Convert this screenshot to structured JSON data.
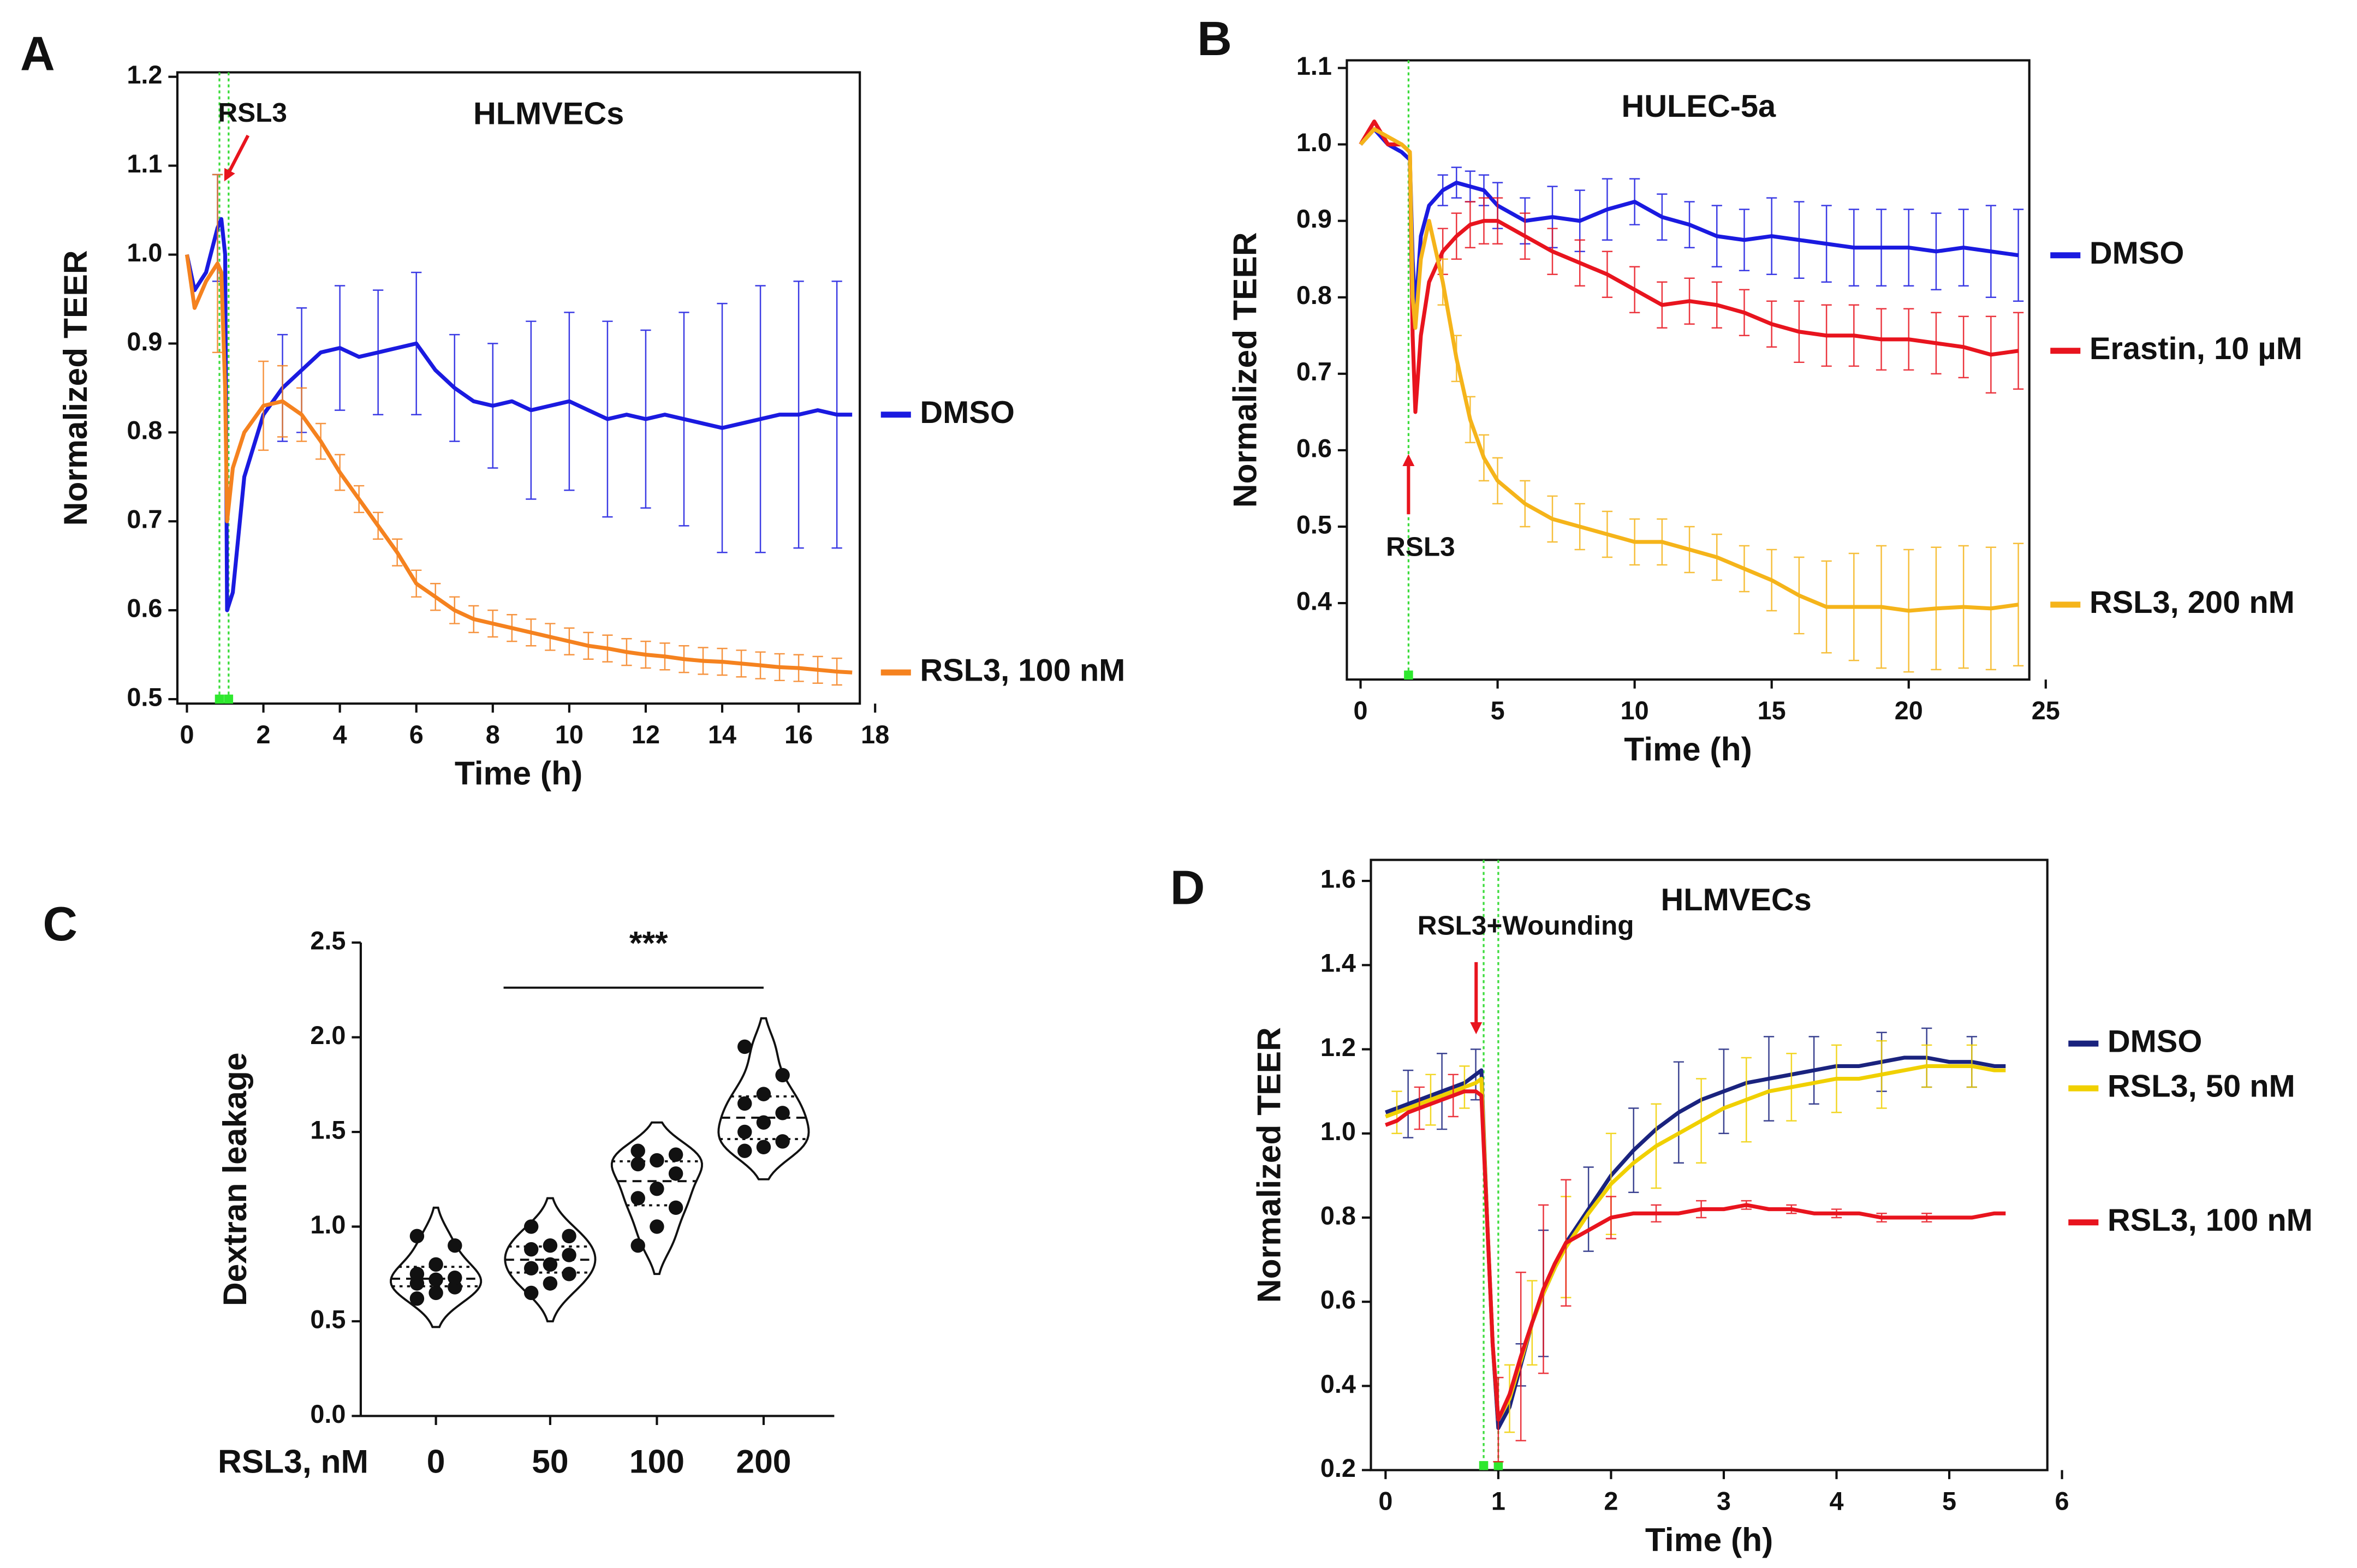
{
  "chart_data": [
    {
      "type": "line",
      "label": "A",
      "title": "HLMVECs",
      "annotation": "RSL3",
      "xlabel": "Time (h)",
      "ylabel": "Normalized TEER",
      "xlim": [
        -0.25,
        17.6
      ],
      "ylim": [
        0.495,
        1.205
      ],
      "xticks": [
        0,
        2,
        4,
        6,
        8,
        10,
        12,
        14,
        16,
        18
      ],
      "yticks": [
        0.5,
        0.6,
        0.7,
        0.8,
        0.9,
        {
          "value": 1.0,
          "label": "1.0"
        },
        1.1,
        1.2
      ],
      "vlines": [
        0.85,
        1.09
      ],
      "x": [
        0,
        0.2,
        0.5,
        0.8,
        0.9,
        1.0,
        1.05,
        1.2,
        1.5,
        2,
        2.5,
        3,
        3.5,
        4,
        4.5,
        5,
        5.5,
        6,
        6.5,
        7,
        7.5,
        8,
        8.5,
        9,
        9.5,
        10,
        10.5,
        11,
        11.5,
        12,
        12.5,
        13,
        13.5,
        14,
        14.5,
        15,
        15.5,
        16,
        16.5,
        17,
        17.4
      ],
      "series": [
        {
          "name": "DMSO",
          "color": "#1a1ae0",
          "values": [
            1.0,
            0.96,
            0.98,
            1.03,
            1.04,
            1.0,
            0.6,
            0.62,
            0.75,
            0.82,
            0.85,
            0.87,
            0.89,
            0.895,
            0.885,
            0.89,
            0.895,
            0.9,
            0.87,
            0.85,
            0.835,
            0.83,
            0.835,
            0.825,
            0.83,
            0.835,
            0.825,
            0.815,
            0.82,
            0.815,
            0.82,
            0.815,
            0.81,
            0.805,
            0.81,
            0.815,
            0.82,
            0.82,
            0.825,
            0.82,
            0.82
          ],
          "errors": [
            null,
            null,
            null,
            0.06,
            null,
            null,
            null,
            null,
            null,
            null,
            0.06,
            0.07,
            null,
            0.07,
            null,
            0.07,
            null,
            0.08,
            null,
            0.06,
            null,
            0.07,
            null,
            0.1,
            null,
            0.1,
            null,
            0.11,
            null,
            0.1,
            null,
            0.12,
            null,
            0.14,
            null,
            0.15,
            null,
            0.15,
            null,
            0.15,
            null
          ]
        },
        {
          "name": "RSL3, 100 nM",
          "color": "#f5821f",
          "values": [
            1.0,
            0.94,
            0.97,
            0.99,
            0.98,
            0.85,
            0.7,
            0.76,
            0.8,
            0.83,
            0.835,
            0.82,
            0.79,
            0.755,
            0.725,
            0.695,
            0.665,
            0.63,
            0.615,
            0.6,
            0.59,
            0.585,
            0.58,
            0.575,
            0.57,
            0.565,
            0.56,
            0.557,
            0.553,
            0.55,
            0.548,
            0.545,
            0.543,
            0.542,
            0.54,
            0.538,
            0.536,
            0.535,
            0.533,
            0.531,
            0.53
          ],
          "errors": [
            null,
            null,
            null,
            0.1,
            null,
            null,
            null,
            null,
            null,
            0.05,
            0.04,
            0.03,
            0.02,
            0.02,
            0.015,
            0.015,
            0.015,
            0.015,
            0.015,
            0.015,
            0.015,
            0.015,
            0.015,
            0.015,
            0.015,
            0.015,
            0.015,
            0.015,
            0.015,
            0.015,
            0.015,
            0.015,
            0.015,
            0.015,
            0.015,
            0.015,
            0.015,
            0.015,
            0.015,
            0.015,
            null
          ]
        }
      ]
    },
    {
      "type": "line",
      "label": "B",
      "title": "HULEC-5a",
      "annotation": "RSL3",
      "xlabel": "Time (h)",
      "ylabel": "Normalized TEER",
      "xlim": [
        -0.5,
        24.4
      ],
      "ylim": [
        0.3,
        1.11
      ],
      "xticks": [
        0,
        5,
        10,
        15,
        20,
        25
      ],
      "yticks": [
        0.4,
        0.5,
        0.6,
        0.7,
        0.8,
        0.9,
        {
          "value": 1.0,
          "label": "1.0"
        },
        1.1
      ],
      "vlines": [
        1.75
      ],
      "x": [
        0,
        0.5,
        1,
        1.5,
        1.8,
        1.9,
        2.0,
        2.2,
        2.5,
        3,
        3.5,
        4,
        4.5,
        5,
        6,
        7,
        8,
        9,
        10,
        11,
        12,
        13,
        14,
        15,
        16,
        17,
        18,
        19,
        20,
        21,
        22,
        23,
        24
      ],
      "series": [
        {
          "name": "DMSO",
          "color": "#1a1ae0",
          "values": [
            1.0,
            1.02,
            1.0,
            0.99,
            0.98,
            0.85,
            0.78,
            0.88,
            0.92,
            0.94,
            0.95,
            0.945,
            0.94,
            0.92,
            0.9,
            0.905,
            0.9,
            0.915,
            0.925,
            0.905,
            0.895,
            0.88,
            0.875,
            0.88,
            0.875,
            0.87,
            0.865,
            0.865,
            0.865,
            0.86,
            0.865,
            0.86,
            0.855
          ],
          "errors": [
            null,
            null,
            null,
            null,
            null,
            null,
            null,
            null,
            null,
            0.02,
            0.02,
            0.02,
            0.02,
            0.03,
            0.03,
            0.04,
            0.04,
            0.04,
            0.03,
            0.03,
            0.03,
            0.04,
            0.04,
            0.05,
            0.05,
            0.05,
            0.05,
            0.05,
            0.05,
            0.05,
            0.05,
            0.06,
            0.06
          ]
        },
        {
          "name": "Erastin, 10 µM",
          "color": "#e8141e",
          "values": [
            1.0,
            1.03,
            1.0,
            1.0,
            0.99,
            0.75,
            0.65,
            0.75,
            0.82,
            0.86,
            0.88,
            0.895,
            0.9,
            0.9,
            0.88,
            0.86,
            0.845,
            0.83,
            0.81,
            0.79,
            0.795,
            0.79,
            0.78,
            0.765,
            0.755,
            0.75,
            0.75,
            0.745,
            0.745,
            0.74,
            0.735,
            0.725,
            0.73
          ],
          "errors": [
            null,
            null,
            null,
            null,
            null,
            null,
            null,
            null,
            null,
            0.03,
            0.03,
            0.03,
            0.03,
            0.03,
            0.03,
            0.03,
            0.03,
            0.03,
            0.03,
            0.03,
            0.03,
            0.03,
            0.03,
            0.03,
            0.04,
            0.04,
            0.04,
            0.04,
            0.04,
            0.04,
            0.04,
            0.05,
            0.05
          ]
        },
        {
          "name": "RSL3, 200 nM",
          "color": "#f5b41a",
          "values": [
            1.0,
            1.02,
            1.01,
            1.0,
            0.99,
            0.8,
            0.76,
            0.85,
            0.9,
            0.82,
            0.72,
            0.64,
            0.59,
            0.56,
            0.53,
            0.51,
            0.5,
            0.49,
            0.48,
            0.48,
            0.47,
            0.46,
            0.445,
            0.43,
            0.41,
            0.395,
            0.395,
            0.395,
            0.39,
            0.393,
            0.395,
            0.393,
            0.398
          ],
          "errors": [
            null,
            null,
            null,
            null,
            null,
            null,
            null,
            null,
            null,
            0.03,
            0.03,
            0.03,
            0.03,
            0.03,
            0.03,
            0.03,
            0.03,
            0.03,
            0.03,
            0.03,
            0.03,
            0.03,
            0.03,
            0.04,
            0.05,
            0.06,
            0.07,
            0.08,
            0.08,
            0.08,
            0.08,
            0.08,
            0.08
          ]
        }
      ]
    },
    {
      "type": "violin",
      "label": "C",
      "title": "***",
      "xlabel": "RSL3, nM",
      "ylabel": "Dextran leakage",
      "ylim": [
        0,
        2.5
      ],
      "yticks": [
        {
          "value": 0,
          "label": "0.0"
        },
        0.5,
        {
          "value": 1.0,
          "label": "1.0"
        },
        1.5,
        {
          "value": 2.0,
          "label": "2.0"
        },
        2.5
      ],
      "categories": [
        "0",
        "50",
        "100",
        "200"
      ],
      "values": [
        [
          0.62,
          0.65,
          0.68,
          0.7,
          0.72,
          0.73,
          0.75,
          0.8,
          0.9,
          0.95
        ],
        [
          0.65,
          0.7,
          0.75,
          0.78,
          0.8,
          0.85,
          0.88,
          0.9,
          0.95,
          1.0
        ],
        [
          0.9,
          1.0,
          1.1,
          1.15,
          1.2,
          1.28,
          1.33,
          1.35,
          1.38,
          1.4
        ],
        [
          1.4,
          1.42,
          1.45,
          1.5,
          1.55,
          1.6,
          1.65,
          1.7,
          1.8,
          1.95
        ]
      ]
    },
    {
      "type": "line",
      "label": "D",
      "title": "HLMVECs",
      "annotation": "RSL3+Wounding",
      "xlabel": "Time (h)",
      "ylabel": "Normalized TEER",
      "xlim": [
        -0.13,
        5.87
      ],
      "ylim": [
        0.2,
        1.65
      ],
      "xticks": [
        0,
        1,
        2,
        3,
        4,
        5,
        6
      ],
      "yticks": [
        0.2,
        0.4,
        0.6,
        0.8,
        {
          "value": 1.0,
          "label": "1.0"
        },
        1.2,
        1.4,
        1.6
      ],
      "vlines": [
        0.87,
        1.0
      ],
      "x": [
        0,
        0.1,
        0.2,
        0.3,
        0.4,
        0.5,
        0.6,
        0.7,
        0.8,
        0.85,
        0.9,
        0.95,
        1.0,
        1.1,
        1.2,
        1.3,
        1.4,
        1.5,
        1.6,
        1.8,
        2.0,
        2.2,
        2.4,
        2.6,
        2.8,
        3.0,
        3.2,
        3.4,
        3.6,
        3.8,
        4.0,
        4.2,
        4.4,
        4.6,
        4.8,
        5.0,
        5.2,
        5.4,
        5.5
      ],
      "series": [
        {
          "name": "DMSO",
          "color": "#1a237e",
          "values": [
            1.05,
            1.06,
            1.07,
            1.08,
            1.09,
            1.1,
            1.11,
            1.12,
            1.14,
            1.15,
            0.8,
            0.5,
            0.3,
            0.35,
            0.45,
            0.55,
            0.62,
            0.68,
            0.74,
            0.82,
            0.9,
            0.96,
            1.01,
            1.05,
            1.08,
            1.1,
            1.12,
            1.13,
            1.14,
            1.15,
            1.16,
            1.16,
            1.17,
            1.18,
            1.18,
            1.17,
            1.17,
            1.16,
            1.16
          ],
          "errors": [
            null,
            null,
            0.08,
            null,
            null,
            0.09,
            null,
            null,
            0.06,
            null,
            null,
            null,
            null,
            null,
            0.05,
            null,
            0.15,
            null,
            null,
            0.1,
            null,
            0.1,
            null,
            0.12,
            null,
            0.1,
            null,
            0.1,
            null,
            0.08,
            null,
            null,
            0.07,
            null,
            0.07,
            null,
            0.06,
            null,
            null
          ]
        },
        {
          "name": "RSL3, 50 nM",
          "color": "#f0d000",
          "values": [
            1.04,
            1.05,
            1.06,
            1.07,
            1.08,
            1.09,
            1.1,
            1.11,
            1.12,
            1.13,
            0.8,
            0.5,
            0.32,
            0.37,
            0.46,
            0.55,
            0.62,
            0.68,
            0.73,
            0.81,
            0.88,
            0.93,
            0.97,
            1.0,
            1.03,
            1.06,
            1.08,
            1.1,
            1.11,
            1.12,
            1.13,
            1.13,
            1.14,
            1.15,
            1.16,
            1.16,
            1.16,
            1.15,
            1.15
          ],
          "errors": [
            null,
            0.05,
            null,
            null,
            0.06,
            null,
            null,
            0.05,
            null,
            null,
            null,
            null,
            null,
            0.08,
            null,
            0.1,
            null,
            null,
            0.12,
            null,
            0.12,
            null,
            0.1,
            null,
            0.1,
            null,
            0.1,
            null,
            0.08,
            null,
            0.08,
            null,
            0.08,
            null,
            0.05,
            null,
            0.05,
            null,
            null
          ]
        },
        {
          "name": "RSL3, 100 nM",
          "color": "#e8141e",
          "values": [
            1.02,
            1.03,
            1.05,
            1.06,
            1.07,
            1.08,
            1.09,
            1.1,
            1.1,
            1.09,
            0.8,
            0.5,
            0.32,
            0.38,
            0.47,
            0.55,
            0.63,
            0.69,
            0.74,
            0.77,
            0.8,
            0.81,
            0.81,
            0.81,
            0.82,
            0.82,
            0.83,
            0.82,
            0.82,
            0.81,
            0.81,
            0.81,
            0.8,
            0.8,
            0.8,
            0.8,
            0.8,
            0.81,
            0.81
          ],
          "errors": [
            null,
            null,
            null,
            0.05,
            null,
            null,
            0.05,
            null,
            null,
            null,
            null,
            null,
            0.1,
            null,
            0.2,
            null,
            0.2,
            null,
            0.15,
            null,
            0.05,
            null,
            0.02,
            null,
            0.02,
            null,
            0.01,
            null,
            0.01,
            null,
            0.01,
            null,
            0.01,
            null,
            0.01,
            null,
            null,
            null,
            null
          ]
        }
      ]
    }
  ]
}
